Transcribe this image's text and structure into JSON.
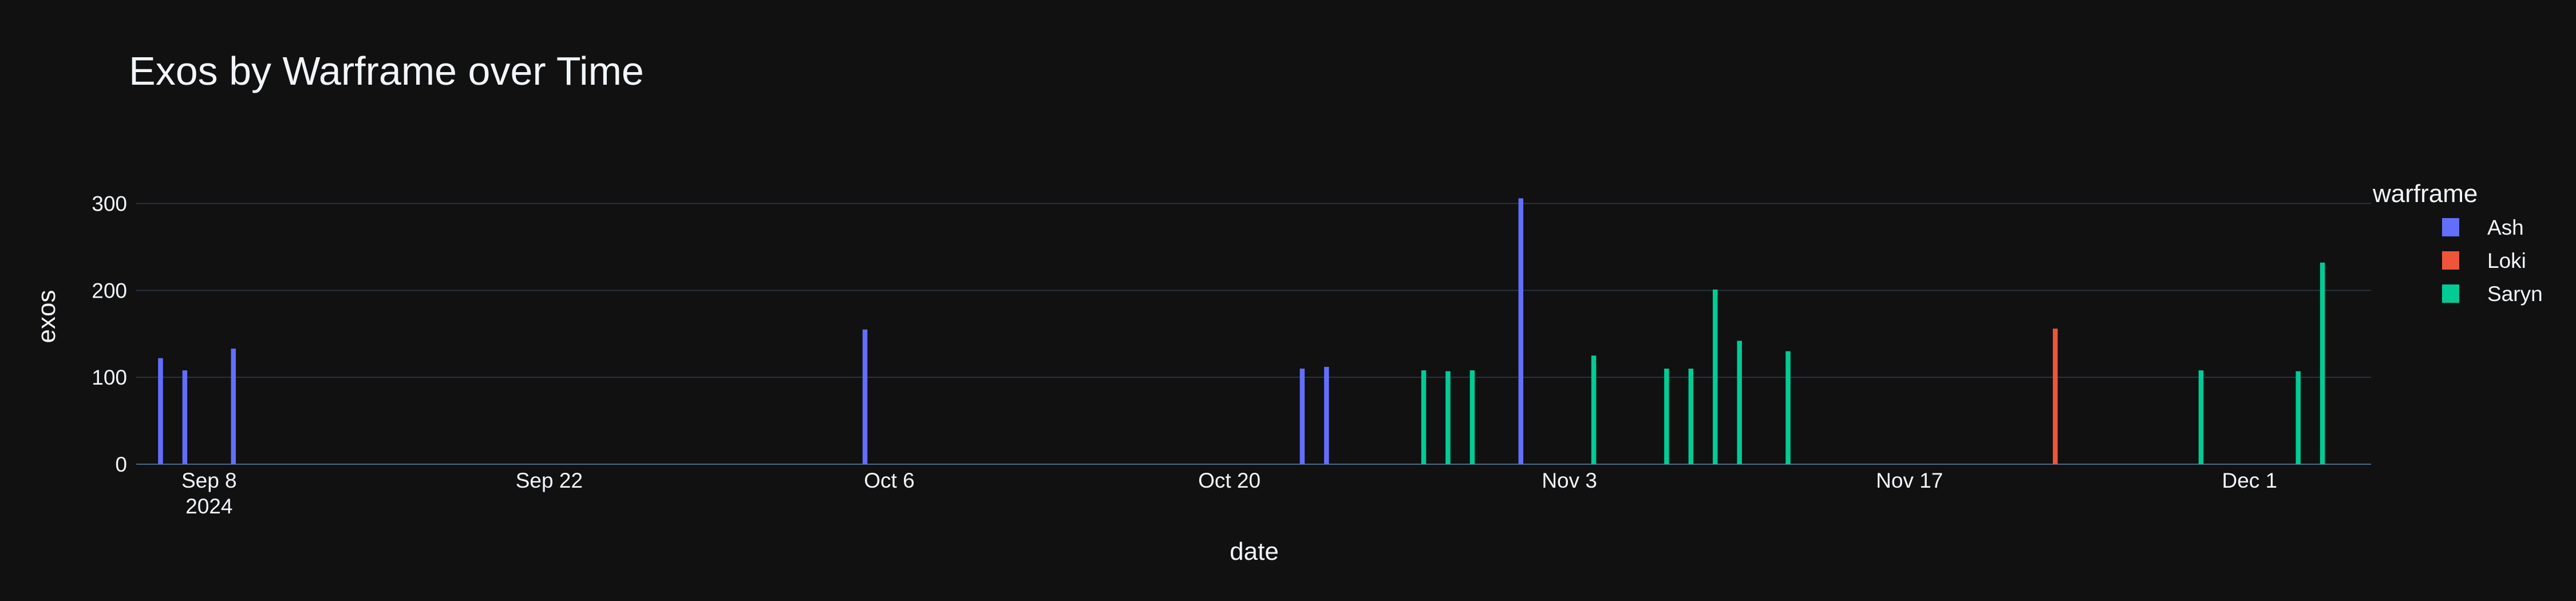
{
  "chart_data": {
    "type": "bar",
    "title": "Exos by Warframe over Time",
    "xlabel": "date",
    "ylabel": "exos",
    "ylim": [
      0,
      330
    ],
    "y_ticks": [
      0,
      100,
      200,
      300
    ],
    "x_range": [
      "2024-09-05",
      "2024-12-06"
    ],
    "x_ticks": [
      {
        "date": "2024-09-08",
        "label": "Sep 8",
        "sub": "2024"
      },
      {
        "date": "2024-09-22",
        "label": "Sep 22"
      },
      {
        "date": "2024-10-06",
        "label": "Oct 6"
      },
      {
        "date": "2024-10-20",
        "label": "Oct 20"
      },
      {
        "date": "2024-11-03",
        "label": "Nov 3"
      },
      {
        "date": "2024-11-17",
        "label": "Nov 17"
      },
      {
        "date": "2024-12-01",
        "label": "Dec 1"
      }
    ],
    "grid": true,
    "legend": {
      "title": "warframe",
      "position": "right"
    },
    "series": [
      {
        "name": "Ash",
        "color": "#636efa",
        "points": [
          {
            "x": "2024-09-06",
            "y": 122
          },
          {
            "x": "2024-09-07",
            "y": 108
          },
          {
            "x": "2024-09-09",
            "y": 133
          },
          {
            "x": "2024-10-05",
            "y": 155
          },
          {
            "x": "2024-10-23",
            "y": 110
          },
          {
            "x": "2024-10-24",
            "y": 112
          },
          {
            "x": "2024-11-01",
            "y": 306
          }
        ]
      },
      {
        "name": "Loki",
        "color": "#ef553b",
        "points": [
          {
            "x": "2024-11-23",
            "y": 156
          }
        ]
      },
      {
        "name": "Saryn",
        "color": "#00cc96",
        "points": [
          {
            "x": "2024-10-28",
            "y": 108
          },
          {
            "x": "2024-10-29",
            "y": 107
          },
          {
            "x": "2024-10-30",
            "y": 108
          },
          {
            "x": "2024-11-04",
            "y": 125
          },
          {
            "x": "2024-11-07",
            "y": 110
          },
          {
            "x": "2024-11-08",
            "y": 110
          },
          {
            "x": "2024-11-09",
            "y": 201
          },
          {
            "x": "2024-11-10",
            "y": 142
          },
          {
            "x": "2024-11-12",
            "y": 130
          },
          {
            "x": "2024-11-29",
            "y": 108
          },
          {
            "x": "2024-12-03",
            "y": 107
          },
          {
            "x": "2024-12-04",
            "y": 232
          }
        ]
      }
    ]
  }
}
